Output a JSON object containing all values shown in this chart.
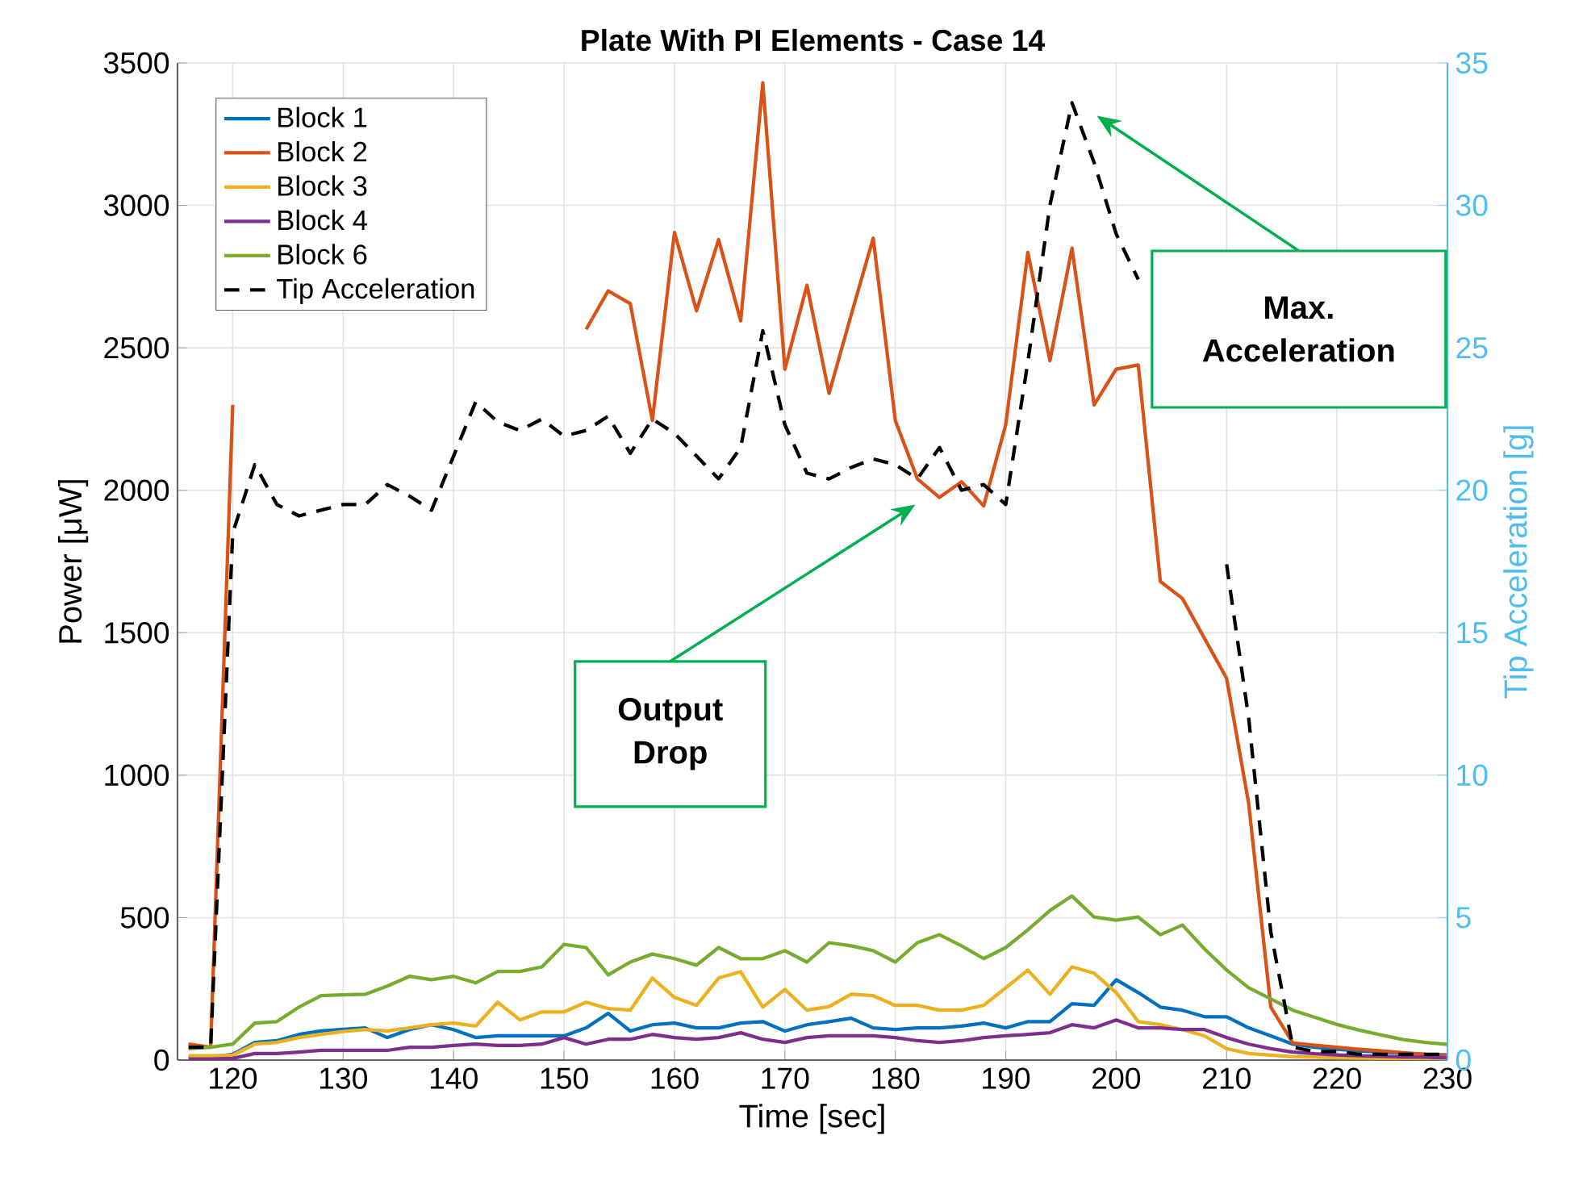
{
  "chart_data": {
    "type": "line",
    "title": "Plate With PI Elements - Case 14",
    "xlabel": "Time [sec]",
    "ylabel": "Power [μW]",
    "y2label": "Tip Acceleration [g]",
    "x": [
      116,
      118,
      120,
      122,
      124,
      126,
      128,
      130,
      132,
      134,
      136,
      138,
      140,
      142,
      144,
      146,
      148,
      150,
      152,
      154,
      156,
      158,
      160,
      162,
      164,
      166,
      168,
      170,
      172,
      174,
      176,
      178,
      180,
      182,
      184,
      186,
      188,
      190,
      192,
      194,
      196,
      198,
      200,
      202,
      204,
      206,
      208,
      210,
      212,
      214,
      216,
      218,
      220,
      222,
      224,
      226,
      228,
      230
    ],
    "series": [
      {
        "name": "Block 1",
        "color": "#0072bd",
        "values": [
          10,
          10,
          20,
          62,
          68,
          90,
          102,
          108,
          113,
          79,
          107,
          124,
          107,
          79,
          85,
          85,
          85,
          85,
          113,
          164,
          102,
          124,
          130,
          113,
          113,
          130,
          135,
          102,
          124,
          135,
          147,
          113,
          107,
          113,
          113,
          119,
          130,
          113,
          135,
          135,
          198,
          192,
          282,
          237,
          186,
          175,
          152,
          152,
          113,
          85,
          56,
          45,
          38,
          32,
          28,
          24,
          20,
          18
        ]
      },
      {
        "name": "Block 2",
        "color": "#d95319",
        "values": [
          56,
          45,
          2300,
          null,
          null,
          null,
          null,
          null,
          null,
          null,
          null,
          null,
          null,
          null,
          null,
          null,
          null,
          null,
          2565,
          2700,
          2655,
          2245,
          2905,
          2630,
          2880,
          2595,
          3430,
          2425,
          2720,
          2340,
          2615,
          2885,
          2245,
          2040,
          1975,
          2030,
          1945,
          2230,
          2835,
          2455,
          2850,
          2300,
          2425,
          2440,
          1680,
          1620,
          1480,
          1340,
          900,
          186,
          60,
          52,
          45,
          38,
          32,
          26,
          20,
          15
        ]
      },
      {
        "name": "Block 3",
        "color": "#edb120",
        "values": [
          15,
          15,
          17,
          56,
          62,
          79,
          90,
          100,
          107,
          102,
          113,
          124,
          130,
          119,
          203,
          141,
          169,
          169,
          203,
          181,
          175,
          288,
          220,
          192,
          288,
          310,
          186,
          248,
          175,
          188,
          231,
          226,
          192,
          192,
          175,
          175,
          192,
          254,
          316,
          231,
          327,
          305,
          237,
          135,
          124,
          107,
          85,
          40,
          23,
          17,
          12,
          10,
          8,
          7,
          6,
          5,
          5,
          4
        ]
      },
      {
        "name": "Block 4",
        "color": "#7e2f8e",
        "values": [
          3,
          3,
          6,
          23,
          23,
          28,
          34,
          34,
          34,
          34,
          45,
          45,
          51,
          56,
          51,
          51,
          56,
          79,
          56,
          73,
          73,
          90,
          79,
          73,
          79,
          96,
          73,
          62,
          79,
          85,
          85,
          85,
          79,
          68,
          62,
          68,
          79,
          85,
          90,
          96,
          124,
          113,
          141,
          113,
          113,
          107,
          107,
          79,
          56,
          40,
          28,
          22,
          18,
          15,
          13,
          11,
          10,
          8
        ]
      },
      {
        "name": "Block 6",
        "color": "#77ac30",
        "values": [
          40,
          45,
          56,
          130,
          135,
          186,
          226,
          229,
          231,
          260,
          294,
          282,
          294,
          271,
          311,
          311,
          327,
          406,
          395,
          299,
          344,
          372,
          356,
          333,
          395,
          356,
          356,
          384,
          344,
          412,
          401,
          384,
          344,
          412,
          440,
          401,
          356,
          395,
          457,
          525,
          576,
          502,
          491,
          502,
          440,
          474,
          390,
          316,
          254,
          215,
          175,
          150,
          125,
          105,
          88,
          72,
          62,
          55
        ]
      },
      {
        "name": "Tip Acceleration",
        "color": "#000000",
        "axis": "y2",
        "line_style": "dashed",
        "values": [
          0.45,
          0.45,
          18.5,
          20.9,
          19.5,
          19.1,
          19.3,
          19.5,
          19.5,
          20.2,
          19.8,
          19.3,
          21.2,
          23.1,
          22.4,
          22.1,
          22.5,
          21.9,
          22.1,
          22.6,
          21.3,
          22.5,
          22.0,
          21.2,
          20.4,
          21.5,
          25.6,
          22.3,
          20.6,
          20.4,
          20.8,
          21.1,
          20.9,
          20.4,
          21.5,
          20.0,
          20.2,
          19.5,
          24.5,
          30.0,
          33.6,
          31.5,
          29.0,
          27.4,
          null,
          null,
          null,
          17.4,
          12.0,
          4.5,
          0.45,
          0.3,
          0.3,
          0.2,
          0.2,
          0.2,
          0.2,
          0.2
        ]
      }
    ],
    "xlim": [
      115,
      230
    ],
    "xticks": [
      120,
      130,
      140,
      150,
      160,
      170,
      180,
      190,
      200,
      210,
      220,
      230
    ],
    "ylim": [
      0,
      3500
    ],
    "yticks": [
      0,
      500,
      1000,
      1500,
      2000,
      2500,
      3000,
      3500
    ],
    "y2lim": [
      0,
      35
    ],
    "y2ticks": [
      0,
      5,
      10,
      15,
      20,
      25,
      30,
      35
    ],
    "grid": true,
    "legend": "top left",
    "line_style": "solid",
    "marker": "none",
    "annotations": [
      "Output Drop",
      "Max. Acceleration"
    ]
  }
}
